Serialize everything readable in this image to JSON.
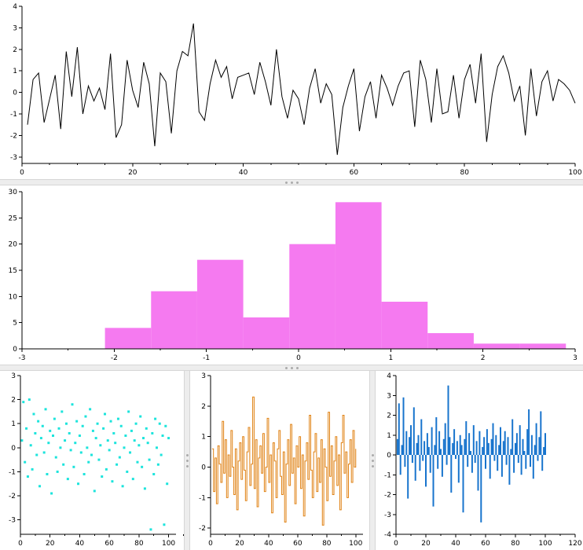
{
  "window": {
    "background": "#ffffff",
    "splitter_color": "#ededed"
  },
  "chart_data": [
    {
      "id": "line",
      "type": "line",
      "title": "",
      "xlabel": "",
      "ylabel": "",
      "color": "#000000",
      "xlim": [
        0,
        100
      ],
      "ylim": [
        -3.3,
        4
      ],
      "xticks": [
        0,
        20,
        40,
        60,
        80,
        100
      ],
      "minor_x_step": 5,
      "yticks": [
        -3,
        -2,
        -1,
        0,
        1,
        2,
        3,
        4
      ],
      "x_start": 1,
      "values": [
        -1.5,
        0.6,
        0.9,
        -1.4,
        -0.3,
        0.8,
        -1.7,
        1.9,
        -0.2,
        2.1,
        -1.0,
        0.3,
        -0.4,
        0.2,
        -0.8,
        1.8,
        -2.1,
        -1.5,
        1.5,
        0.1,
        -0.7,
        1.4,
        0.4,
        -2.5,
        0.9,
        0.5,
        -1.9,
        1.0,
        1.9,
        1.7,
        3.2,
        -0.9,
        -1.3,
        0.4,
        1.5,
        0.7,
        1.2,
        -0.3,
        0.7,
        0.8,
        0.9,
        -0.1,
        1.4,
        0.5,
        -0.6,
        2.0,
        -0.2,
        -1.2,
        0.1,
        -0.3,
        -1.5,
        0.2,
        1.1,
        -0.5,
        0.4,
        -0.1,
        -2.9,
        -0.7,
        0.3,
        1.1,
        -1.8,
        -0.2,
        0.5,
        -1.2,
        0.8,
        0.2,
        -0.6,
        0.3,
        0.9,
        1.0,
        -1.6,
        1.5,
        0.6,
        -1.4,
        1.1,
        -1.0,
        -0.9,
        0.8,
        -1.2,
        0.6,
        1.3,
        -0.5,
        1.8,
        -2.3,
        -0.1,
        1.2,
        1.7,
        0.9,
        -0.4,
        0.3,
        -2.0,
        1.1,
        -1.1,
        0.5,
        1.0,
        -0.4,
        0.6,
        0.4,
        0.1,
        -0.5
      ]
    },
    {
      "id": "histogram",
      "type": "histogram",
      "title": "",
      "xlabel": "",
      "ylabel": "",
      "color": "#f57af0",
      "xlim": [
        -3,
        3
      ],
      "ylim": [
        0,
        30
      ],
      "xticks": [
        -3,
        -2,
        -1,
        0,
        1,
        2,
        3
      ],
      "minor_x_step": 0.5,
      "yticks": [
        0,
        5,
        10,
        15,
        20,
        25,
        30
      ],
      "bin_edges": [
        -2.1,
        -1.6,
        -1.1,
        -0.6,
        -0.1,
        0.4,
        0.9,
        1.4,
        1.9,
        2.4,
        2.9
      ],
      "counts": [
        4,
        11,
        17,
        6,
        20,
        28,
        9,
        3,
        1,
        1
      ]
    },
    {
      "id": "scatter",
      "type": "scatter",
      "title": "",
      "xlabel": "",
      "ylabel": "",
      "color": "#1ce4dc",
      "xlim": [
        0,
        105
      ],
      "ylim": [
        -3.6,
        3
      ],
      "xticks": [
        0,
        20,
        40,
        60,
        80,
        100
      ],
      "minor_x_step": 10,
      "yticks": [
        -3,
        -2,
        -1,
        0,
        1,
        2,
        3
      ],
      "x_start": 1,
      "values": [
        0.3,
        1.9,
        -0.6,
        0.8,
        -1.2,
        2.0,
        0.1,
        -0.9,
        1.4,
        0.6,
        -0.3,
        1.1,
        -1.6,
        0.4,
        0.9,
        -0.2,
        1.6,
        -1.1,
        0.2,
        0.7,
        -1.9,
        0.5,
        1.2,
        -0.4,
        -1.0,
        0.8,
        0.0,
        1.5,
        -0.7,
        0.3,
        1.0,
        -1.3,
        0.6,
        -0.1,
        1.8,
        -0.8,
        0.2,
        1.1,
        -1.5,
        0.5,
        -0.2,
        0.9,
        -1.1,
        1.3,
        0.0,
        -0.6,
        1.6,
        -0.3,
        0.7,
        -1.8,
        0.4,
        1.0,
        -0.5,
        0.1,
        -1.2,
        0.8,
        1.4,
        -0.9,
        0.3,
        -0.1,
        1.1,
        -1.4,
        0.6,
        0.2,
        -0.7,
        1.2,
        -0.4,
        0.9,
        -1.6,
        0.0,
        0.5,
        -1.0,
        1.5,
        -0.2,
        0.7,
        -1.3,
        0.3,
        1.0,
        -0.6,
        0.1,
        1.3,
        -0.8,
        0.4,
        -1.7,
        0.8,
        0.2,
        -0.5,
        -3.4,
        0.6,
        -1.1,
        1.2,
        0.0,
        -0.7,
        1.0,
        -0.3,
        0.5,
        -3.2,
        0.9,
        -1.5,
        0.4
      ]
    },
    {
      "id": "stairs",
      "type": "stairs",
      "title": "",
      "xlabel": "",
      "ylabel": "",
      "color": "#e08214",
      "xlim": [
        0,
        105
      ],
      "ylim": [
        -2.2,
        3
      ],
      "xticks": [
        0,
        20,
        40,
        60,
        80,
        100
      ],
      "minor_x_step": 10,
      "yticks": [
        -2,
        -1,
        0,
        1,
        2,
        3
      ],
      "x_start": 1,
      "values": [
        0.6,
        -0.8,
        0.3,
        -1.2,
        0.7,
        0.1,
        -0.5,
        1.5,
        -0.2,
        0.9,
        -1.0,
        0.4,
        -0.3,
        1.2,
        0.0,
        -0.9,
        0.6,
        -1.4,
        0.2,
        0.8,
        -0.4,
        1.0,
        -0.1,
        -1.1,
        0.5,
        1.3,
        -0.6,
        0.1,
        2.3,
        -0.7,
        0.9,
        -1.3,
        0.3,
        0.7,
        -0.2,
        1.1,
        -0.8,
        0.0,
        1.6,
        -0.5,
        0.4,
        -1.5,
        0.8,
        0.2,
        -1.0,
        0.6,
        1.2,
        -0.3,
        -0.9,
        0.5,
        -1.8,
        0.1,
        0.9,
        -0.6,
        1.4,
        -0.2,
        0.3,
        -1.2,
        0.7,
        0.0,
        1.0,
        -0.7,
        0.4,
        -1.6,
        0.2,
        0.8,
        -0.4,
        1.7,
        -0.1,
        -1.0,
        0.5,
        1.1,
        -0.8,
        0.3,
        -0.5,
        0.9,
        -1.9,
        0.6,
        0.0,
        -1.1,
        1.8,
        -0.3,
        0.7,
        -0.9,
        0.2,
        1.0,
        -0.6,
        0.4,
        -1.4,
        0.8,
        1.7,
        -0.2,
        0.5,
        -1.0,
        0.1,
        0.9,
        -0.5,
        1.2,
        0.0,
        0.6
      ]
    },
    {
      "id": "stem",
      "type": "stem",
      "title": "",
      "xlabel": "",
      "ylabel": "",
      "color": "#1874cd",
      "xlim": [
        0,
        120
      ],
      "ylim": [
        -4,
        4
      ],
      "xticks": [
        0,
        20,
        40,
        60,
        80,
        100,
        120
      ],
      "minor_x_step": 10,
      "yticks": [
        -4,
        -3,
        -2,
        -1,
        0,
        1,
        2,
        3,
        4
      ],
      "x_start": 1,
      "values": [
        0.8,
        2.6,
        -1.0,
        0.5,
        2.9,
        -0.6,
        1.2,
        -2.2,
        0.9,
        1.5,
        -0.4,
        2.4,
        -1.3,
        0.6,
        1.0,
        -0.8,
        1.8,
        -0.3,
        0.7,
        -1.6,
        1.1,
        0.4,
        -0.9,
        1.4,
        -2.6,
        0.5,
        1.9,
        -0.7,
        1.2,
        0.3,
        -1.1,
        0.8,
        1.6,
        -0.5,
        3.5,
        0.9,
        -1.9,
        0.6,
        1.3,
        -0.2,
        0.7,
        -1.4,
        1.0,
        0.5,
        -2.9,
        0.8,
        1.7,
        -0.6,
        1.1,
        0.2,
        -0.9,
        1.5,
        -0.4,
        0.7,
        -1.8,
        1.2,
        -3.4,
        0.4,
        0.9,
        -0.7,
        1.3,
        0.6,
        -1.2,
        0.8,
        1.6,
        -0.3,
        1.0,
        -0.8,
        0.5,
        1.4,
        -1.1,
        0.7,
        1.2,
        -0.5,
        0.9,
        -1.5,
        0.3,
        1.8,
        -0.9,
        0.6,
        1.1,
        -0.4,
        1.5,
        -1.0,
        0.8,
        0.2,
        -0.7,
        1.3,
        2.3,
        -0.6,
        1.0,
        -1.2,
        0.5,
        1.6,
        -0.3,
        0.9,
        2.2,
        -0.8,
        0.4,
        1.1
      ]
    }
  ]
}
